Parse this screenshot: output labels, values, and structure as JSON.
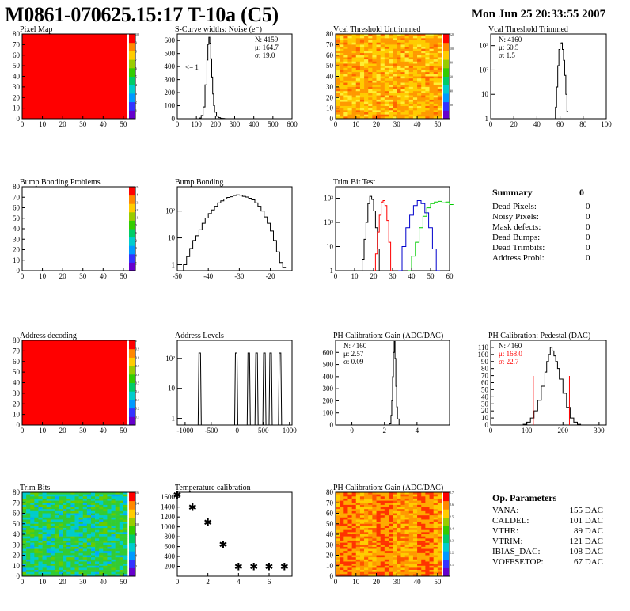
{
  "header": {
    "title": "M0861-070625.15:17 T-10a (C5)",
    "date": "Mon Jun 25 20:33:55 2007"
  },
  "colors": {
    "red": "#ff0000",
    "black": "#000000",
    "green": "#00cc00",
    "blue": "#0000cc",
    "pink": "#e8a0a8"
  },
  "chart_data": [
    {
      "id": "pixel-map",
      "type": "heatmap",
      "title": "Pixel Map",
      "xlim": [
        0,
        52
      ],
      "ylim": [
        0,
        80
      ],
      "xticks": [
        0,
        10,
        20,
        30,
        40,
        50
      ],
      "yticks": [
        0,
        10,
        20,
        30,
        40,
        50,
        60,
        70,
        80
      ],
      "zlim": [
        0,
        10
      ],
      "fill": "uniform-red",
      "zticks": [
        "1",
        "2",
        "3",
        "4",
        "5",
        "6",
        "7",
        "8",
        "9",
        "10"
      ]
    },
    {
      "id": "scurve-widths",
      "type": "bar",
      "title": "S-Curve widths: Noise (e⁻)",
      "xlim": [
        0,
        600
      ],
      "ylim": [
        0,
        650
      ],
      "xticks": [
        0,
        100,
        200,
        300,
        400,
        500,
        600
      ],
      "yticks": [
        0,
        100,
        200,
        300,
        400,
        500,
        600
      ],
      "stats": {
        "N": "N: 4159",
        "mu": "μ: 164.7",
        "sigma": "σ: 19.0"
      },
      "annotation": "<= 1",
      "x": [
        105,
        115,
        125,
        135,
        145,
        155,
        160,
        165,
        170,
        175,
        180,
        185,
        190,
        195,
        205,
        215,
        225,
        235,
        245,
        255
      ],
      "values": [
        0,
        5,
        25,
        90,
        260,
        450,
        570,
        625,
        580,
        460,
        320,
        190,
        100,
        50,
        20,
        8,
        4,
        2,
        1,
        0
      ]
    },
    {
      "id": "vcal-untrimmed",
      "type": "heatmap",
      "title": "Vcal Threshold Untrimmed",
      "xlim": [
        0,
        52
      ],
      "ylim": [
        0,
        80
      ],
      "xticks": [
        0,
        10,
        20,
        30,
        40,
        50
      ],
      "yticks": [
        0,
        10,
        20,
        30,
        40,
        50,
        60,
        70,
        80
      ],
      "zlim": [
        0,
        130
      ],
      "fill": "noise-yellow-orange",
      "zticks": [
        "20",
        "40",
        "60",
        "80",
        "100",
        "120"
      ]
    },
    {
      "id": "vcal-trimmed",
      "type": "bar",
      "title": "Vcal Threshold Trimmed",
      "xlim": [
        0,
        100
      ],
      "ylim": [
        1,
        3000
      ],
      "log_y": true,
      "xticks": [
        0,
        20,
        40,
        60,
        80,
        100
      ],
      "yticks": [
        "1",
        "10",
        "10²",
        "10³"
      ],
      "stats": {
        "N": "N: 4160",
        "mu": "μ: 60.5",
        "sigma": "σ:   1.5"
      },
      "x": [
        56,
        57,
        58,
        59,
        60,
        61,
        62,
        63,
        64,
        65,
        66
      ],
      "values": [
        3,
        20,
        150,
        700,
        1200,
        1300,
        700,
        250,
        60,
        10,
        2
      ]
    },
    {
      "id": "bump-problems",
      "type": "heatmap",
      "title": "Bump Bonding Problems",
      "xlim": [
        0,
        52
      ],
      "ylim": [
        0,
        80
      ],
      "xticks": [
        0,
        10,
        20,
        30,
        40,
        50
      ],
      "yticks": [
        0,
        10,
        20,
        30,
        40,
        50,
        60,
        70,
        80
      ],
      "zlim": [
        -5,
        5
      ],
      "fill": "empty",
      "zticks": [
        "5",
        "4",
        "3",
        "2",
        "1",
        "0",
        "-1",
        "-2",
        "-3",
        "-4",
        "-5"
      ]
    },
    {
      "id": "bump-bonding",
      "type": "bar",
      "title": "Bump Bonding",
      "xlim": [
        -50,
        -13
      ],
      "ylim": [
        0.6,
        800
      ],
      "log_y": true,
      "xticks": [
        -50,
        -40,
        -30,
        -20
      ],
      "yticks": [
        "1",
        "10",
        "10²"
      ],
      "x": [
        -48,
        -47,
        -46,
        -45,
        -44,
        -43,
        -42,
        -41,
        -40,
        -39,
        -38,
        -37,
        -36,
        -35,
        -34,
        -33,
        -32,
        -31,
        -30,
        -29,
        -28,
        -27,
        -26,
        -25,
        -24,
        -23,
        -22,
        -21,
        -20,
        -19,
        -18,
        -17,
        -16
      ],
      "values": [
        1,
        2,
        4,
        8,
        12,
        20,
        35,
        55,
        80,
        110,
        150,
        200,
        240,
        280,
        320,
        340,
        380,
        400,
        390,
        350,
        330,
        300,
        260,
        200,
        150,
        100,
        60,
        35,
        18,
        8,
        3,
        1.2,
        0.8
      ]
    },
    {
      "id": "trim-bit-test",
      "type": "line",
      "title": "Trim Bit Test",
      "xlim": [
        0,
        60
      ],
      "ylim": [
        1,
        3000
      ],
      "log_y": true,
      "xticks": [
        0,
        10,
        20,
        30,
        40,
        50,
        60
      ],
      "yticks": [
        "1",
        "10",
        "10²",
        "10³"
      ],
      "series": [
        {
          "color": "#000000",
          "x": [
            13,
            14,
            15,
            16,
            17,
            18,
            19,
            20,
            21,
            22,
            23
          ],
          "values": [
            1,
            3,
            20,
            100,
            600,
            1200,
            900,
            300,
            60,
            8,
            1
          ]
        },
        {
          "color": "#ff0000",
          "x": [
            20,
            21,
            22,
            23,
            24,
            25,
            26,
            27,
            28,
            29
          ],
          "values": [
            1,
            5,
            40,
            200,
            700,
            800,
            500,
            120,
            15,
            1
          ]
        },
        {
          "color": "#0000cc",
          "x": [
            33,
            35,
            37,
            39,
            41,
            43,
            45,
            47,
            49,
            51,
            53
          ],
          "values": [
            1,
            10,
            60,
            200,
            500,
            800,
            600,
            250,
            60,
            8,
            1
          ]
        },
        {
          "color": "#00cc00",
          "x": [
            38,
            40,
            42,
            44,
            46,
            48,
            50,
            52,
            54,
            56,
            58,
            60
          ],
          "values": [
            1,
            4,
            15,
            60,
            180,
            400,
            600,
            700,
            750,
            650,
            700,
            550
          ]
        }
      ]
    },
    {
      "id": "ph-gain",
      "type": "bar",
      "title": "PH Calibration: Gain (ADC/DAC)",
      "xlim": [
        -1,
        6
      ],
      "ylim": [
        0,
        700
      ],
      "xticks": [
        0,
        2,
        4
      ],
      "yticks": [
        0,
        100,
        200,
        300,
        400,
        500,
        600
      ],
      "stats": {
        "N": "N: 4160",
        "mu": "μ: 2.57",
        "sigma": "σ: 0.09"
      },
      "x": [
        2.2,
        2.3,
        2.4,
        2.45,
        2.5,
        2.55,
        2.6,
        2.65,
        2.7,
        2.75,
        2.8,
        2.9
      ],
      "values": [
        0,
        10,
        80,
        200,
        400,
        600,
        690,
        550,
        320,
        150,
        50,
        0
      ]
    },
    {
      "id": "ph-pedestal",
      "type": "bar",
      "title": "PH Calibration: Pedestal (DAC)",
      "xlim": [
        0,
        320
      ],
      "ylim": [
        0,
        120
      ],
      "xticks": [
        0,
        100,
        200,
        300
      ],
      "yticks": [
        0,
        10,
        20,
        30,
        40,
        50,
        60,
        70,
        80,
        90,
        100,
        110
      ],
      "stats": {
        "N": "N: 4160",
        "mu": "μ: 168.0",
        "sigma": "σ: 22.7"
      },
      "x": [
        90,
        100,
        110,
        120,
        130,
        140,
        150,
        155,
        160,
        165,
        170,
        175,
        180,
        185,
        190,
        200,
        210,
        220,
        230,
        240
      ],
      "values": [
        1,
        4,
        10,
        20,
        35,
        55,
        75,
        90,
        100,
        110,
        105,
        98,
        90,
        80,
        65,
        45,
        25,
        10,
        4,
        1
      ]
    },
    {
      "id": "trim-bits",
      "type": "heatmap",
      "title": "Trim Bits",
      "xlim": [
        0,
        52
      ],
      "ylim": [
        0,
        80
      ],
      "xticks": [
        0,
        10,
        20,
        30,
        40,
        50
      ],
      "yticks": [
        0,
        10,
        20,
        30,
        40,
        50,
        60,
        70,
        80
      ],
      "zlim": [
        0,
        16
      ],
      "fill": "noise-green-cyan",
      "zticks": [
        "2",
        "4",
        "6",
        "8",
        "10",
        "12",
        "14",
        "16"
      ]
    },
    {
      "id": "temperature-calibration",
      "type": "scatter",
      "title": "Temperature calibration",
      "xlim": [
        0,
        7.5
      ],
      "ylim": [
        0,
        1700
      ],
      "xticks": [
        0,
        2,
        4,
        6
      ],
      "yticks": [
        200,
        400,
        600,
        800,
        1000,
        1200,
        1400,
        1600
      ],
      "x": [
        0,
        1,
        2,
        3,
        4,
        5,
        6,
        7
      ],
      "values": [
        1650,
        1400,
        1100,
        650,
        200,
        200,
        200,
        200
      ]
    },
    {
      "id": "ph-gain-map",
      "type": "heatmap",
      "title": "PH Calibration: Gain (ADC/DAC)",
      "xlim": [
        0,
        52
      ],
      "ylim": [
        0,
        80
      ],
      "xticks": [
        0,
        10,
        20,
        30,
        40,
        50
      ],
      "yticks": [
        0,
        10,
        20,
        30,
        40,
        50,
        60,
        70,
        80
      ],
      "zlim": [
        2.0,
        2.8
      ],
      "fill": "noise-gain",
      "zticks": [
        "2.1",
        "2.2",
        "2.3",
        "2.4",
        "2.5",
        "2.6",
        "2.7"
      ]
    }
  ],
  "summary": {
    "title": "Summary",
    "total": "0",
    "rows": [
      {
        "label": "Dead Pixels:",
        "value": "0"
      },
      {
        "label": "Noisy Pixels:",
        "value": "0"
      },
      {
        "label": "Mask defects:",
        "value": "0"
      },
      {
        "label": "Dead Bumps:",
        "value": "0"
      },
      {
        "label": "Dead Trimbits:",
        "value": "0"
      },
      {
        "label": "Address Probl:",
        "value": "0"
      }
    ]
  },
  "op_params": {
    "title": "Op. Parameters",
    "rows": [
      {
        "label": "VANA:",
        "value": "155 DAC"
      },
      {
        "label": "CALDEL:",
        "value": "101 DAC"
      },
      {
        "label": "VTHR:",
        "value": "89 DAC"
      },
      {
        "label": "VTRIM:",
        "value": "121 DAC"
      },
      {
        "label": "IBIAS_DAC:",
        "value": "108 DAC"
      },
      {
        "label": "VOFFSETOP:",
        "value": "67 DAC"
      }
    ]
  },
  "address_decoding": {
    "title": "Address decoding",
    "zticks": [
      "0.1",
      "0.2",
      "0.3",
      "0.4",
      "0.5",
      "0.6",
      "0.7",
      "0.8",
      "0.9",
      "1"
    ]
  },
  "address_levels": {
    "title": "Address Levels",
    "xticks": [
      "-1000",
      "-500",
      "0",
      "500",
      "1000"
    ],
    "yticks": [
      "1",
      "10",
      "10²"
    ],
    "peaks": [
      -720,
      -20,
      220,
      370,
      520,
      640,
      820
    ]
  }
}
